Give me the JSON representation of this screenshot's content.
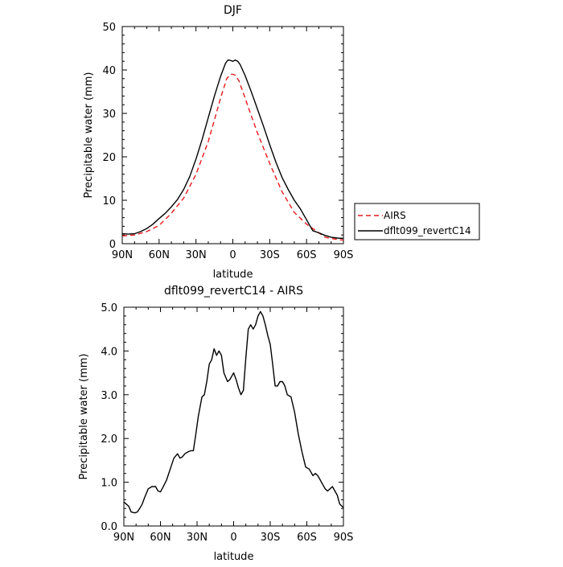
{
  "chart_data": [
    {
      "type": "line",
      "title": "DJF",
      "xlabel": "latitude",
      "ylabel": "Precipitable water  (mm)",
      "xlim": [
        90,
        -90
      ],
      "ylim": [
        0,
        50
      ],
      "x_tick_values": [
        90,
        60,
        30,
        0,
        -30,
        -60,
        -90
      ],
      "x_tick_labels": [
        "90N",
        "60N",
        "30N",
        "0",
        "30S",
        "60S",
        "90S"
      ],
      "y_tick_values": [
        0,
        10,
        20,
        30,
        40,
        50
      ],
      "y_tick_labels": [
        "0",
        "10",
        "20",
        "30",
        "40",
        "50"
      ],
      "legend_position": "right",
      "series": [
        {
          "name": "AIRS",
          "color": "#e8191c",
          "dash": "dashed",
          "x": [
            90,
            80,
            70,
            60,
            50,
            40,
            30,
            20,
            15,
            10,
            5,
            2,
            0,
            -2,
            -5,
            -10,
            -15,
            -20,
            -30,
            -40,
            -50,
            -60,
            -70,
            -75,
            -80,
            -85,
            -90
          ],
          "y": [
            1.8,
            2.0,
            2.8,
            4.2,
            7.0,
            10.5,
            16.0,
            23.5,
            28.5,
            33.5,
            38.0,
            39.0,
            39.0,
            38.8,
            37.5,
            33.5,
            29.5,
            25.5,
            18.5,
            12.0,
            7.2,
            4.5,
            2.5,
            1.5,
            1.2,
            1.0,
            0.8
          ]
        },
        {
          "name": "dflt099_revertC14",
          "color": "#000000",
          "dash": "solid",
          "x": [
            90,
            85,
            80,
            75,
            70,
            65,
            60,
            55,
            50,
            45,
            40,
            35,
            30,
            25,
            20,
            15,
            10,
            6,
            4,
            2,
            0,
            -2,
            -4,
            -6,
            -10,
            -15,
            -20,
            -25,
            -30,
            -35,
            -40,
            -45,
            -50,
            -55,
            -60,
            -65,
            -70,
            -75,
            -80,
            -85,
            -90
          ],
          "y": [
            2.3,
            2.2,
            2.3,
            2.8,
            3.5,
            4.5,
            5.8,
            7.0,
            8.5,
            10.2,
            12.5,
            15.5,
            19.5,
            24.0,
            29.0,
            34.0,
            38.5,
            41.5,
            42.3,
            42.2,
            42.0,
            42.3,
            42.0,
            41.2,
            38.7,
            35.0,
            31.0,
            27.0,
            22.8,
            18.8,
            15.3,
            12.5,
            10.0,
            8.0,
            5.5,
            3.0,
            2.5,
            1.9,
            1.5,
            1.3,
            1.2
          ]
        }
      ]
    },
    {
      "type": "line",
      "title": "dflt099_revertC14 - AIRS",
      "xlabel": "latitude",
      "ylabel": "Precipitable water  (mm)",
      "xlim": [
        90,
        -90
      ],
      "ylim": [
        0,
        5
      ],
      "x_tick_values": [
        90,
        60,
        30,
        0,
        -30,
        -60,
        -90
      ],
      "x_tick_labels": [
        "90N",
        "60N",
        "30N",
        "0",
        "30S",
        "60S",
        "90S"
      ],
      "y_tick_values": [
        0,
        1,
        2,
        3,
        4,
        5
      ],
      "y_tick_labels": [
        "0.0",
        "1.0",
        "2.0",
        "3.0",
        "4.0",
        "5.0"
      ],
      "series": [
        {
          "color": "#000000",
          "dash": "solid",
          "x": [
            90,
            88,
            86,
            84,
            81,
            79,
            77,
            75,
            73,
            70,
            67,
            64,
            62,
            60,
            58,
            55,
            52,
            49,
            46,
            44,
            42,
            40,
            37,
            35,
            33,
            31,
            29,
            26,
            24,
            22,
            20,
            18,
            16,
            14,
            12,
            10,
            8,
            5,
            3,
            1,
            0,
            -2,
            -4,
            -6,
            -8,
            -10,
            -12,
            -14,
            -16,
            -18,
            -20,
            -22,
            -24,
            -26,
            -28,
            -30,
            -32,
            -34,
            -36,
            -38,
            -40,
            -42,
            -44,
            -47,
            -50,
            -53,
            -56,
            -59,
            -62,
            -65,
            -67,
            -69,
            -71,
            -73,
            -75,
            -77,
            -79,
            -81,
            -83,
            -85,
            -87,
            -90
          ],
          "y": [
            0.55,
            0.5,
            0.45,
            0.32,
            0.3,
            0.32,
            0.4,
            0.5,
            0.65,
            0.85,
            0.9,
            0.9,
            0.8,
            0.78,
            0.88,
            1.05,
            1.3,
            1.55,
            1.65,
            1.55,
            1.58,
            1.65,
            1.7,
            1.72,
            1.72,
            2.1,
            2.5,
            2.95,
            3.0,
            3.3,
            3.7,
            3.8,
            4.05,
            3.9,
            4.0,
            3.9,
            3.5,
            3.3,
            3.35,
            3.45,
            3.5,
            3.35,
            3.15,
            3.0,
            3.1,
            3.85,
            4.5,
            4.6,
            4.5,
            4.6,
            4.8,
            4.9,
            4.8,
            4.6,
            4.35,
            4.15,
            3.7,
            3.2,
            3.2,
            3.3,
            3.3,
            3.2,
            3.0,
            2.95,
            2.6,
            2.1,
            1.7,
            1.35,
            1.3,
            1.15,
            1.2,
            1.15,
            1.05,
            0.95,
            0.85,
            0.8,
            0.85,
            0.9,
            0.8,
            0.7,
            0.5,
            0.42
          ]
        }
      ]
    }
  ]
}
